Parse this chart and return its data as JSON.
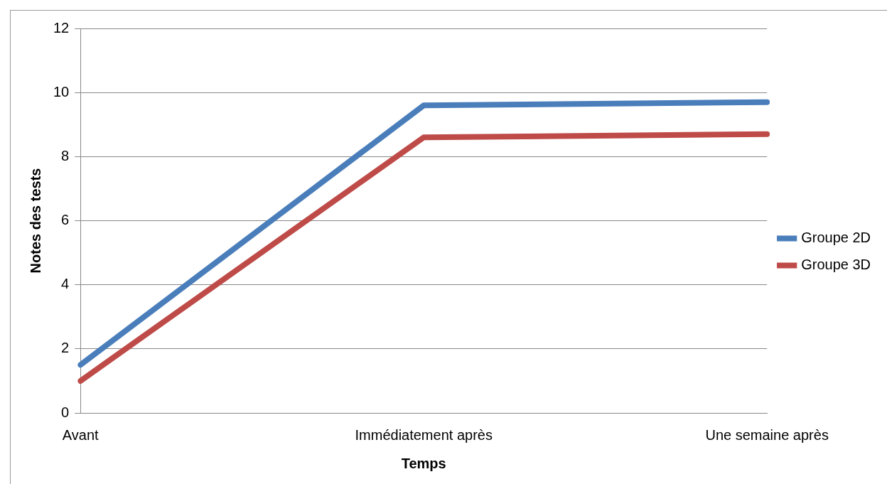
{
  "chart_data": {
    "type": "line",
    "xlabel": "Temps",
    "ylabel": "Notes des tests",
    "categories": [
      "Avant",
      "Immédiatement après",
      "Une semaine après"
    ],
    "series": [
      {
        "name": "Groupe 2D",
        "color": "#4a7ebb",
        "values": [
          1.5,
          9.6,
          9.7
        ]
      },
      {
        "name": "Groupe 3D",
        "color": "#be4b48",
        "values": [
          1.0,
          8.6,
          8.7
        ]
      }
    ],
    "ylim": [
      0,
      12
    ],
    "yticks": [
      0,
      2,
      4,
      6,
      8,
      10,
      12
    ],
    "grid": "y",
    "legend": "right",
    "marker": "none",
    "line_style": "solid"
  }
}
